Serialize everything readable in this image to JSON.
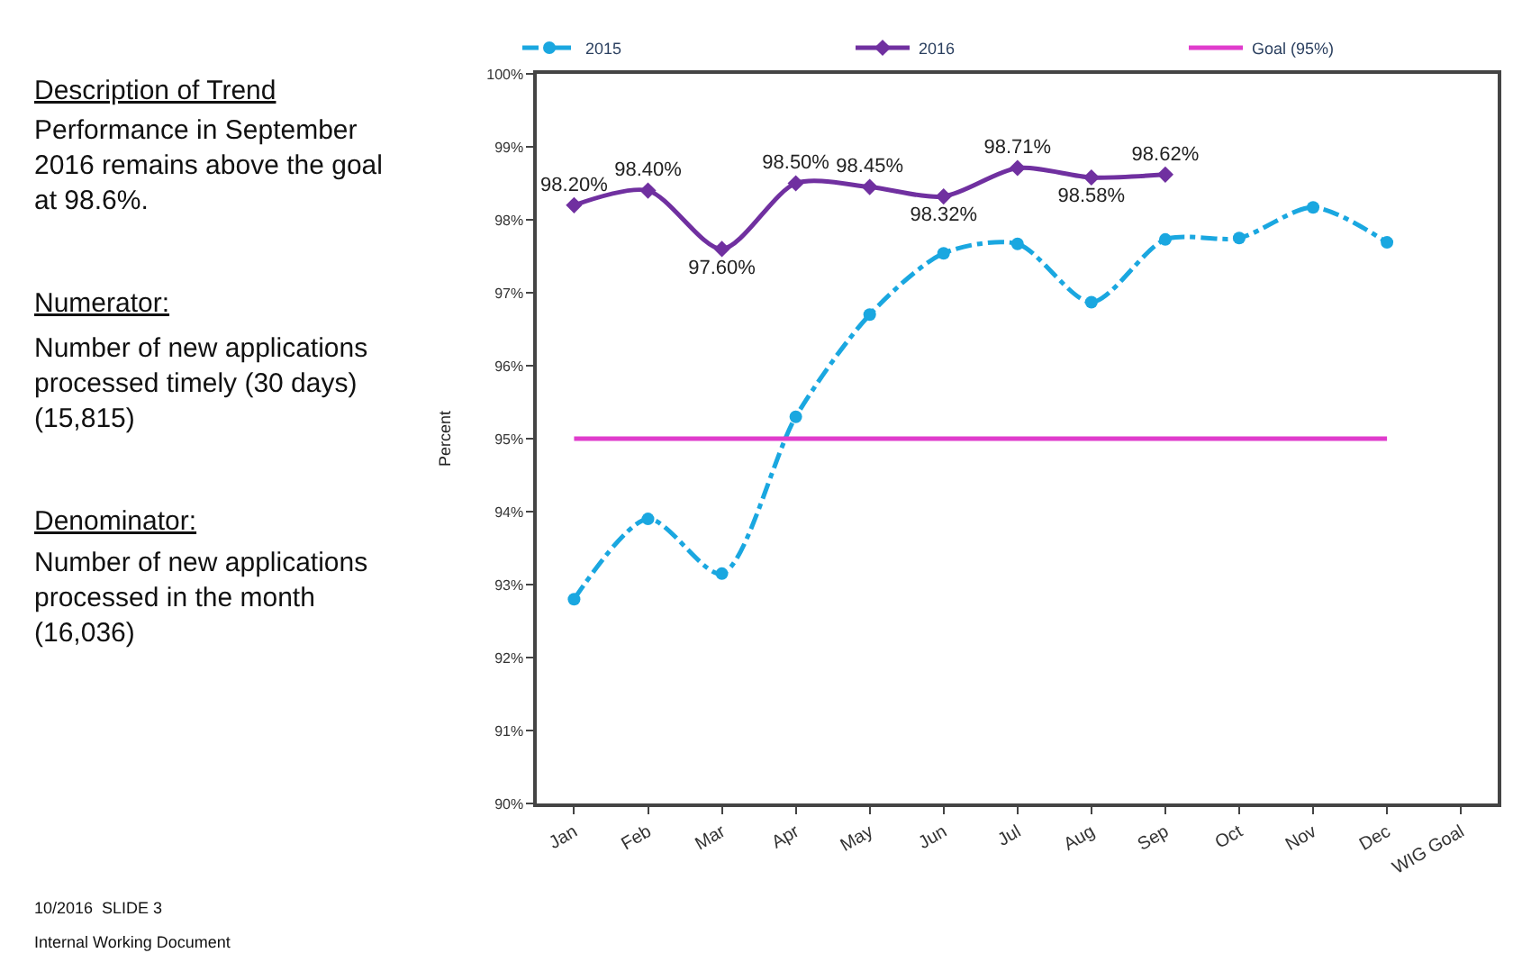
{
  "chart_data": {
    "type": "line",
    "categories": [
      "Jan",
      "Feb",
      "Mar",
      "Apr",
      "May",
      "Jun",
      "Jul",
      "Aug",
      "Sep",
      "Oct",
      "Nov",
      "Dec",
      "WIG Goal"
    ],
    "series": [
      {
        "name": "2015",
        "color": "#1aa7e0",
        "marker": "circle",
        "line_style": "dashdot",
        "values": [
          92.8,
          93.9,
          93.15,
          95.3,
          96.7,
          97.54,
          97.67,
          96.87,
          97.73,
          97.75,
          98.17,
          97.69,
          null
        ]
      },
      {
        "name": "2016",
        "color": "#7030a0",
        "marker": "diamond",
        "line_style": "solid",
        "values": [
          98.2,
          98.4,
          97.6,
          98.5,
          98.45,
          98.32,
          98.71,
          98.58,
          98.62,
          null,
          null,
          null,
          null
        ],
        "value_labels": [
          "98.20%",
          "98.40%",
          "97.60%",
          "98.50%",
          "98.45%",
          "98.32%",
          "98.71%",
          "98.58%",
          "98.62%",
          null,
          null,
          null,
          null
        ]
      },
      {
        "name": "Goal (95%)",
        "color": "#e03ccc",
        "marker": "none",
        "line_style": "solid",
        "values": [
          95,
          95,
          95,
          95,
          95,
          95,
          95,
          95,
          95,
          95,
          95,
          95,
          null
        ]
      }
    ],
    "ylabel": "Percent",
    "ylim": [
      90,
      100
    ],
    "yticks": [
      {
        "value": 90,
        "label": "90%"
      },
      {
        "value": 91,
        "label": "91%"
      },
      {
        "value": 92,
        "label": "92%"
      },
      {
        "value": 93,
        "label": "93%"
      },
      {
        "value": 94,
        "label": "94%"
      },
      {
        "value": 95,
        "label": "95%"
      },
      {
        "value": 96,
        "label": "96%"
      },
      {
        "value": 97,
        "label": "97%"
      },
      {
        "value": 98,
        "label": "98%"
      },
      {
        "value": 99,
        "label": "99%"
      },
      {
        "value": 100,
        "label": "100%"
      }
    ],
    "legend": "top",
    "annotations": [
      "Description of Trend",
      "Performance in September\n2016 remains above the goal\nat 98.6%.",
      "Numerator:",
      "Number of new applications\nprocessed timely (30 days)\n(15,815)",
      "Denominator:",
      "Number of new applications\nprocessed in the month\n(16,036)",
      "10/2016  SLIDE 3",
      "Internal Working Document"
    ]
  }
}
